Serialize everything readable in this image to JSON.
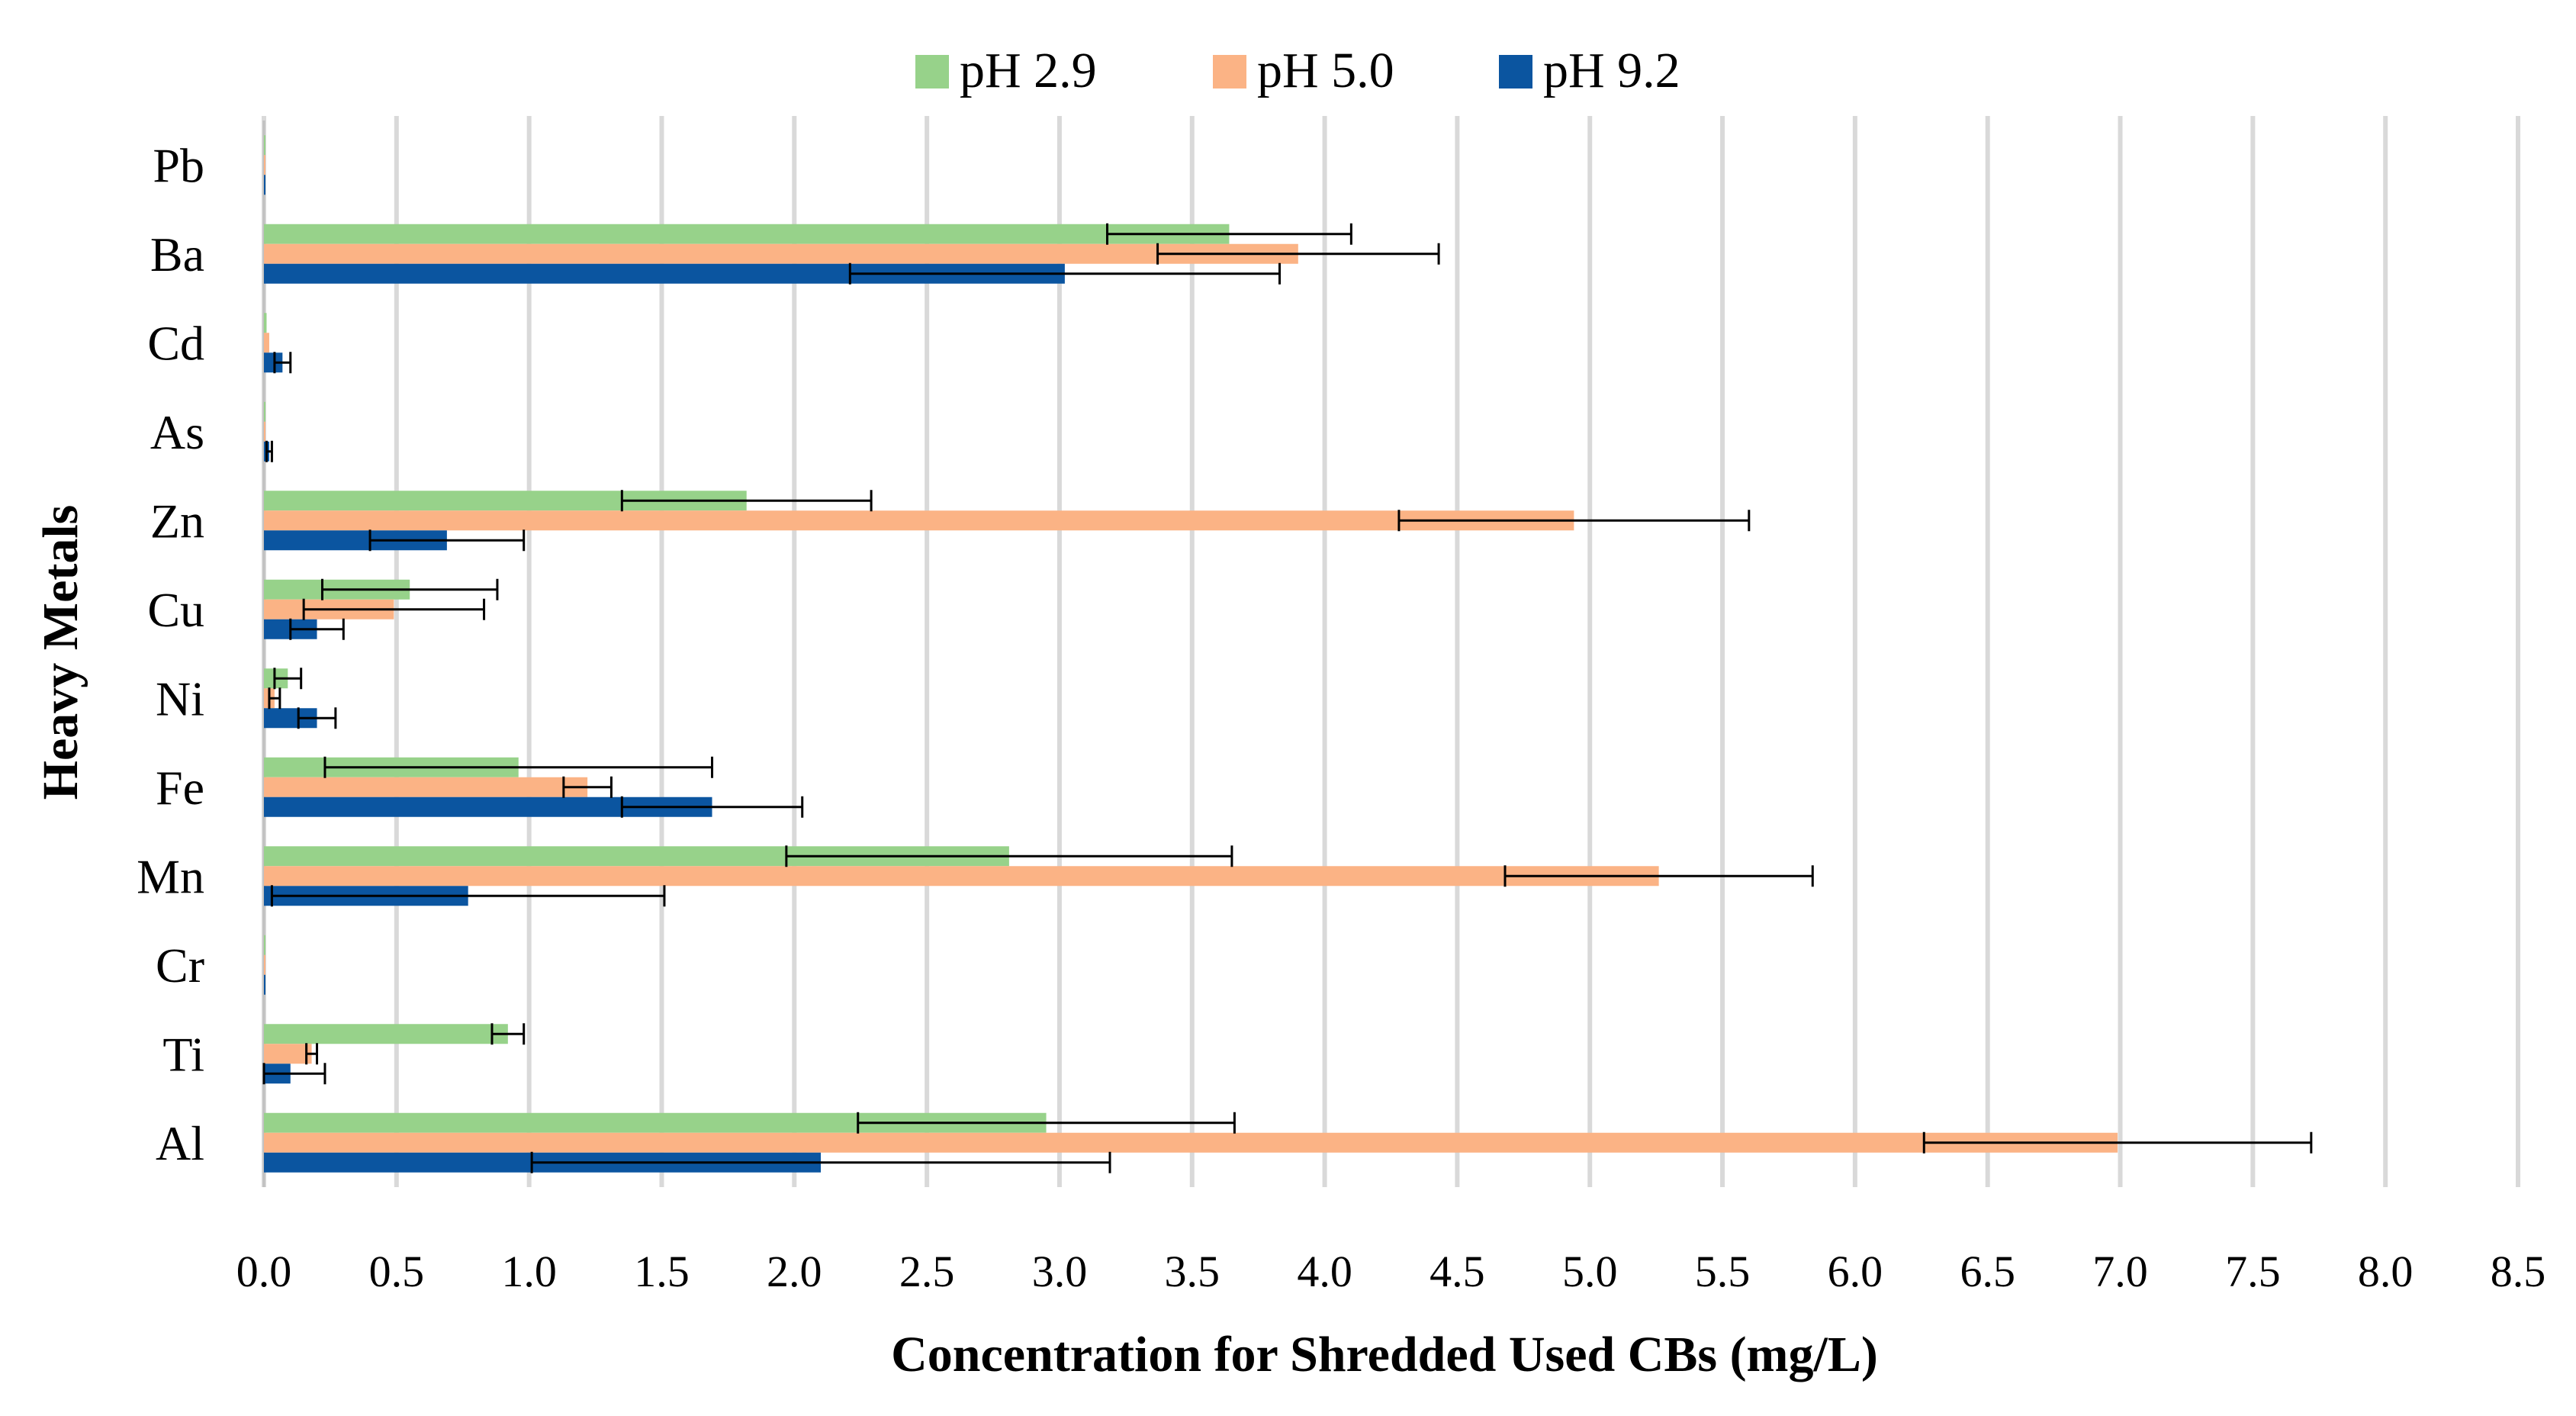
{
  "chart_data": {
    "type": "bar",
    "orientation": "horizontal",
    "xlabel": "Concentration for Shredded Used CBs (mg/L)",
    "ylabel": "Heavy Metals",
    "xlim": [
      0,
      8.5
    ],
    "xticks": [
      "0.0",
      "0.5",
      "1.0",
      "1.5",
      "2.0",
      "2.5",
      "3.0",
      "3.5",
      "4.0",
      "4.5",
      "5.0",
      "5.5",
      "6.0",
      "6.5",
      "7.0",
      "7.5",
      "8.0",
      "8.5"
    ],
    "grid": "vertical",
    "legend_position": "top-center",
    "categories": [
      "Pb",
      "Ba",
      "Cd",
      "As",
      "Zn",
      "Cu",
      "Ni",
      "Fe",
      "Mn",
      "Cr",
      "Ti",
      "Al"
    ],
    "series": [
      {
        "name": "pH 2.9",
        "color": "#97d28a",
        "values": [
          0.0,
          3.64,
          0.01,
          0.0,
          1.82,
          0.55,
          0.09,
          0.96,
          2.81,
          0.0,
          0.92,
          2.95
        ],
        "errors": [
          0.0,
          0.46,
          0.0,
          0.0,
          0.47,
          0.33,
          0.05,
          0.73,
          0.84,
          0.0,
          0.06,
          0.71
        ]
      },
      {
        "name": "pH 5.0",
        "color": "#fbb385",
        "values": [
          0.0,
          3.9,
          0.02,
          0.0,
          4.94,
          0.49,
          0.04,
          1.22,
          5.26,
          0.0,
          0.18,
          6.99
        ],
        "errors": [
          0.0,
          0.53,
          0.0,
          0.0,
          0.66,
          0.34,
          0.02,
          0.09,
          0.58,
          0.0,
          0.02,
          0.73
        ]
      },
      {
        "name": "pH 9.2",
        "color": "#0b55a0",
        "values": [
          0.0,
          3.02,
          0.07,
          0.02,
          0.69,
          0.2,
          0.2,
          1.69,
          0.77,
          0.0,
          0.1,
          2.1
        ],
        "errors": [
          0.0,
          0.81,
          0.03,
          0.01,
          0.29,
          0.1,
          0.07,
          0.34,
          0.74,
          0.0,
          0.13,
          1.09
        ]
      }
    ]
  }
}
